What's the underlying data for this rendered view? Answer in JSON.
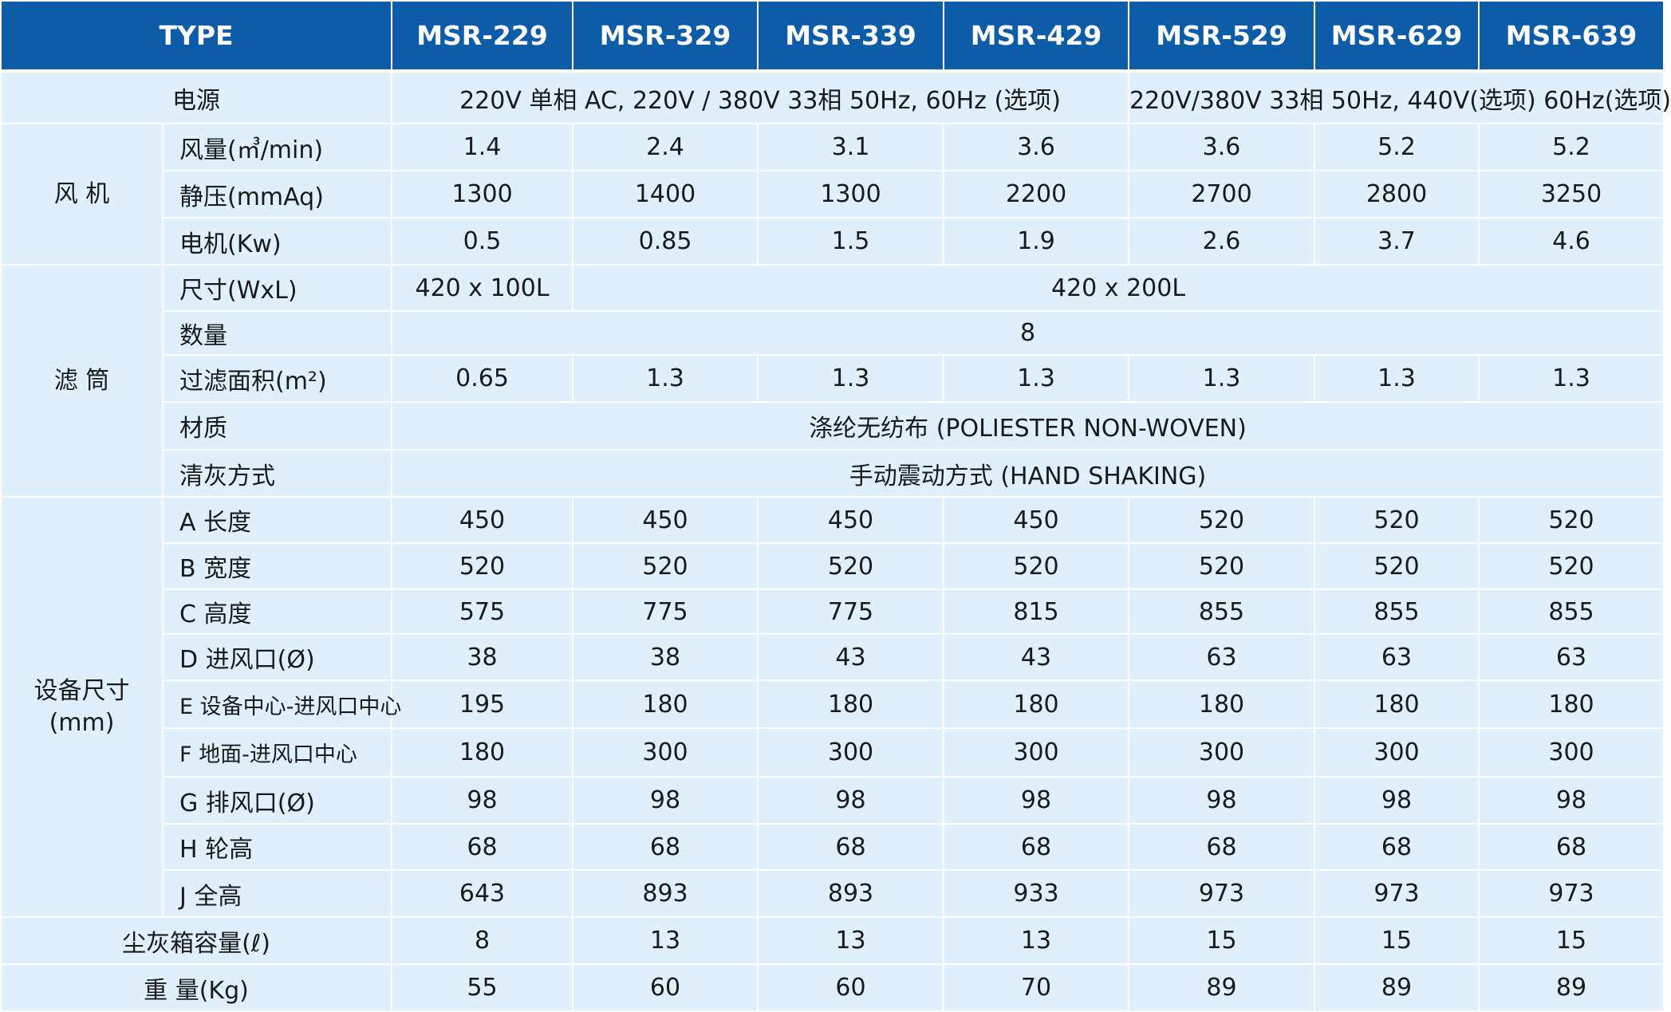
{
  "header": {
    "type_label": "TYPE",
    "models": [
      "MSR-229",
      "MSR-329",
      "MSR-339",
      "MSR-429",
      "MSR-529",
      "MSR-629",
      "MSR-639"
    ]
  },
  "power": {
    "label": "电源",
    "value_a": "220V 单相 AC, 220V / 380V 33相 50Hz, 60Hz (选项)",
    "value_b": "220V/380V 33相 50Hz, 440V(选项) 60Hz(选项)"
  },
  "fan": {
    "label": "风 机",
    "rows": [
      {
        "label": "风量(㎥/min)",
        "values": [
          "1.4",
          "2.4",
          "3.1",
          "3.6",
          "3.6",
          "5.2",
          "5.2"
        ]
      },
      {
        "label": "静压(mmAq)",
        "values": [
          "1300",
          "1400",
          "1300",
          "2200",
          "2700",
          "2800",
          "3250"
        ]
      },
      {
        "label": "电机(Kw)",
        "values": [
          "0.5",
          "0.85",
          "1.5",
          "1.9",
          "2.6",
          "3.7",
          "4.6"
        ]
      }
    ]
  },
  "filter": {
    "label": "滤 筒",
    "size_label": "尺寸(WxL)",
    "size_first": "420 x 100L",
    "size_rest": "420 x 200L",
    "qty_label": "数量",
    "qty_value": "8",
    "area_label": "过滤面积(m²)",
    "area_values": [
      "0.65",
      "1.3",
      "1.3",
      "1.3",
      "1.3",
      "1.3",
      "1.3"
    ],
    "material_label": "材质",
    "material_value": "涤纶无纺布 (POLIESTER NON-WOVEN)",
    "cleaning_label": "清灰方式",
    "cleaning_value": "手动震动方式 (HAND SHAKING)"
  },
  "dimensions": {
    "label_line1": "设备尺寸",
    "label_line2": "(mm)",
    "rows": [
      {
        "label": "A 长度",
        "values": [
          "450",
          "450",
          "450",
          "450",
          "520",
          "520",
          "520"
        ]
      },
      {
        "label": "B 宽度",
        "values": [
          "520",
          "520",
          "520",
          "520",
          "520",
          "520",
          "520"
        ]
      },
      {
        "label": "C 高度",
        "values": [
          "575",
          "775",
          "775",
          "815",
          "855",
          "855",
          "855"
        ]
      },
      {
        "label": "D 进风口(Ø)",
        "values": [
          "38",
          "38",
          "43",
          "43",
          "63",
          "63",
          "63"
        ]
      },
      {
        "label": "E 设备中心-进风口中心",
        "values": [
          "195",
          "180",
          "180",
          "180",
          "180",
          "180",
          "180"
        ]
      },
      {
        "label": "F 地面-进风口中心",
        "values": [
          "180",
          "300",
          "300",
          "300",
          "300",
          "300",
          "300"
        ]
      },
      {
        "label": "G 排风口(Ø)",
        "values": [
          "98",
          "98",
          "98",
          "98",
          "98",
          "98",
          "98"
        ]
      },
      {
        "label": "H 轮高",
        "values": [
          "68",
          "68",
          "68",
          "68",
          "68",
          "68",
          "68"
        ]
      },
      {
        "label": "J 全高",
        "values": [
          "643",
          "893",
          "893",
          "933",
          "973",
          "973",
          "973"
        ]
      }
    ]
  },
  "dust_box": {
    "label": "尘灰箱容量(ℓ)",
    "values": [
      "8",
      "13",
      "13",
      "13",
      "15",
      "15",
      "15"
    ]
  },
  "weight": {
    "label": "重 量(Kg)",
    "values": [
      "55",
      "60",
      "60",
      "70",
      "89",
      "89",
      "89"
    ]
  }
}
